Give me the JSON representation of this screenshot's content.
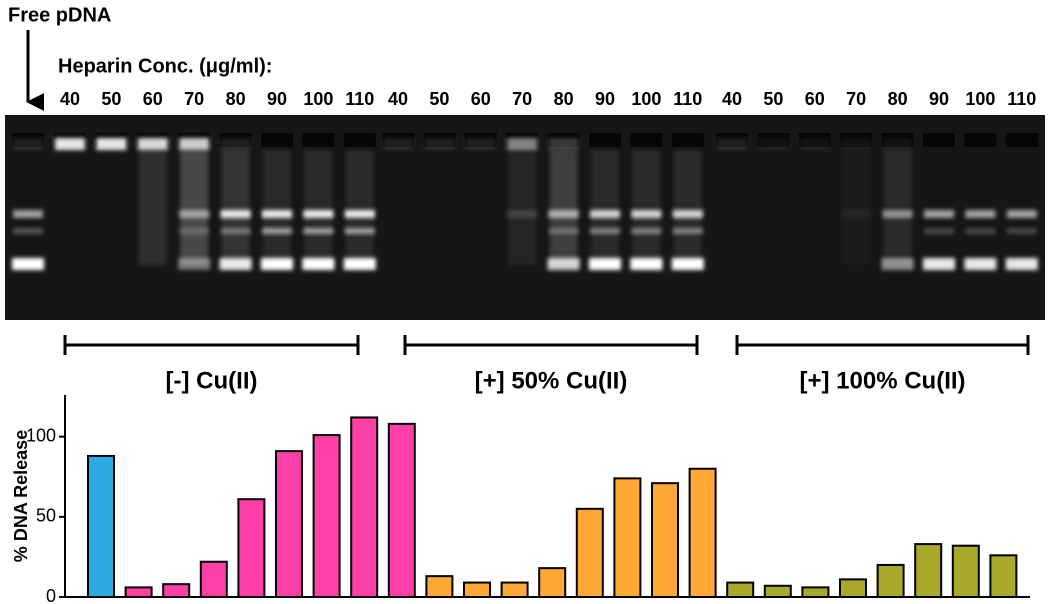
{
  "gel": {
    "free_label": "Free pDNA",
    "conc_label": "Heparin Conc. (μg/ml):",
    "groups": [
      {
        "label": "[-] Cu(II)",
        "concentrations": [
          40,
          50,
          60,
          70,
          80,
          90,
          100,
          110
        ]
      },
      {
        "label": "[+] 50% Cu(II)",
        "concentrations": [
          40,
          50,
          60,
          70,
          80,
          90,
          100,
          110
        ]
      },
      {
        "label": "[+] 100% Cu(II)",
        "concentrations": [
          40,
          50,
          60,
          70,
          80,
          90,
          100,
          110
        ]
      }
    ]
  },
  "chart_data": {
    "type": "bar",
    "ylabel": "% DNA Release",
    "categories": [
      null,
      null,
      null,
      null,
      null,
      null,
      null,
      null,
      null,
      null,
      null,
      null,
      null,
      null,
      null,
      null,
      null,
      null,
      null,
      null,
      null,
      null,
      null,
      null,
      null
    ],
    "values": [
      88,
      6,
      8,
      22,
      61,
      91,
      101,
      112,
      108,
      13,
      9,
      9,
      18,
      55,
      74,
      71,
      80,
      9,
      7,
      6,
      11,
      20,
      33,
      32,
      26
    ],
    "colors": [
      "#29aae2",
      "#ff3fa8",
      "#ff3fa8",
      "#ff3fa8",
      "#ff3fa8",
      "#ff3fa8",
      "#ff3fa8",
      "#ff3fa8",
      "#ff3fa8",
      "#ffa834",
      "#ffa834",
      "#ffa834",
      "#ffa834",
      "#ffa834",
      "#ffa834",
      "#ffa834",
      "#ffa834",
      "#a8a82a",
      "#a8a82a",
      "#a8a82a",
      "#a8a82a",
      "#a8a82a",
      "#a8a82a",
      "#a8a82a",
      "#a8a82a"
    ],
    "ylim": [
      0,
      126
    ],
    "yticks": [
      0,
      50,
      100
    ]
  }
}
